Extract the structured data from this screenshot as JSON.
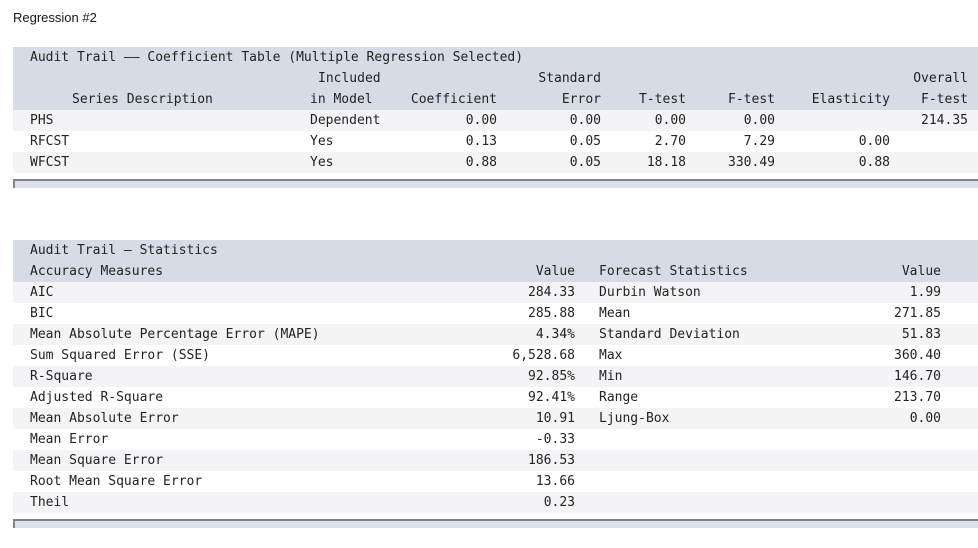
{
  "page_title": "Regression #2",
  "colors": {
    "header_bg": "#d7dbe5",
    "stripe_bg": "#f4f4f6",
    "scrollbar_bg": "#dce0eb",
    "scrollbar_border": "#7f838d",
    "text": "#232323"
  },
  "coefficient_table": {
    "title": "Audit Trail –– Coefficient Table (Multiple Regression Selected)",
    "header": {
      "series": "Series Description",
      "included_line1": "Included",
      "included_line2": "in Model",
      "coefficient": "Coefficient",
      "std_error_line1": "Standard",
      "std_error_line2": "Error",
      "t_test": "T-test",
      "f_test": "F-test",
      "elasticity": "Elasticity",
      "overall_line1": "Overall",
      "overall_line2": "F-test"
    },
    "rows": [
      {
        "series": "PHS",
        "included": "Dependent",
        "coefficient": "0.00",
        "std_error": "0.00",
        "t_test": "0.00",
        "f_test": "0.00",
        "elasticity": "",
        "overall_f_test": "214.35"
      },
      {
        "series": "RFCST",
        "included": "Yes",
        "coefficient": "0.13",
        "std_error": "0.05",
        "t_test": "2.70",
        "f_test": "7.29",
        "elasticity": "0.00",
        "overall_f_test": ""
      },
      {
        "series": "WFCST",
        "included": "Yes",
        "coefficient": "0.88",
        "std_error": "0.05",
        "t_test": "18.18",
        "f_test": "330.49",
        "elasticity": "0.88",
        "overall_f_test": ""
      }
    ]
  },
  "statistics_table": {
    "title": "Audit Trail – Statistics",
    "header": {
      "accuracy": "Accuracy Measures",
      "accuracy_value": "Value",
      "forecast": "Forecast Statistics",
      "forecast_value": "Value"
    },
    "rows": [
      {
        "measure": "AIC",
        "value": "284.33",
        "stat": "Durbin Watson",
        "stat_value": "1.99"
      },
      {
        "measure": "BIC",
        "value": "285.88",
        "stat": "Mean",
        "stat_value": "271.85"
      },
      {
        "measure": "Mean Absolute Percentage Error (MAPE)",
        "value": "4.34%",
        "stat": "Standard Deviation",
        "stat_value": "51.83"
      },
      {
        "measure": "Sum Squared Error (SSE)",
        "value": "6,528.68",
        "stat": "Max",
        "stat_value": "360.40"
      },
      {
        "measure": "R-Square",
        "value": "92.85%",
        "stat": "Min",
        "stat_value": "146.70"
      },
      {
        "measure": "Adjusted R-Square",
        "value": "92.41%",
        "stat": "Range",
        "stat_value": "213.70"
      },
      {
        "measure": "Mean Absolute Error",
        "value": "10.91",
        "stat": "Ljung-Box",
        "stat_value": "0.00"
      },
      {
        "measure": "Mean Error",
        "value": "-0.33",
        "stat": "",
        "stat_value": ""
      },
      {
        "measure": "Mean Square Error",
        "value": "186.53",
        "stat": "",
        "stat_value": ""
      },
      {
        "measure": "Root Mean Square Error",
        "value": "13.66",
        "stat": "",
        "stat_value": ""
      },
      {
        "measure": "Theil",
        "value": "0.23",
        "stat": "",
        "stat_value": ""
      }
    ]
  }
}
